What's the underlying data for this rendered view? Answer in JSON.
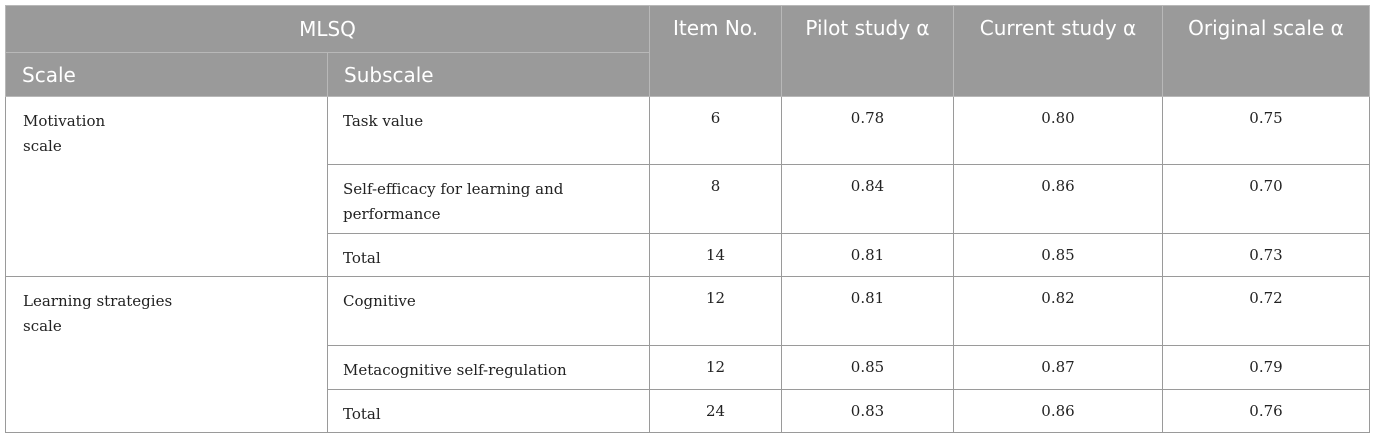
{
  "header": {
    "group": "MLSQ",
    "scale": "Scale",
    "subscale": "Subscale",
    "item_no": "Item No.",
    "pilot": "Pilot study α",
    "current": "Current study α",
    "original": "Original scale α"
  },
  "groups": [
    {
      "scale": "Motivation\nscale",
      "rows": [
        {
          "subscale": "Task value",
          "item_no": "6",
          "pilot": "0.78",
          "current": "0.80",
          "original": "0.75"
        },
        {
          "subscale": "Self-efficacy for learning and\nperformance",
          "item_no": "8",
          "pilot": "0.84",
          "current": "0.86",
          "original": "0.70"
        },
        {
          "subscale": "Total",
          "item_no": "14",
          "pilot": "0.81",
          "current": "0.85",
          "original": "0.73"
        }
      ]
    },
    {
      "scale": "Learning strategies\nscale",
      "rows": [
        {
          "subscale": "Cognitive",
          "item_no": "12",
          "pilot": "0.81",
          "current": "0.82",
          "original": "0.72"
        },
        {
          "subscale": "Metacognitive self-regulation",
          "item_no": "12",
          "pilot": "0.85",
          "current": "0.87",
          "original": "0.79"
        },
        {
          "subscale": "Total",
          "item_no": "24",
          "pilot": "0.83",
          "current": "0.86",
          "original": "0.76"
        }
      ]
    }
  ]
}
